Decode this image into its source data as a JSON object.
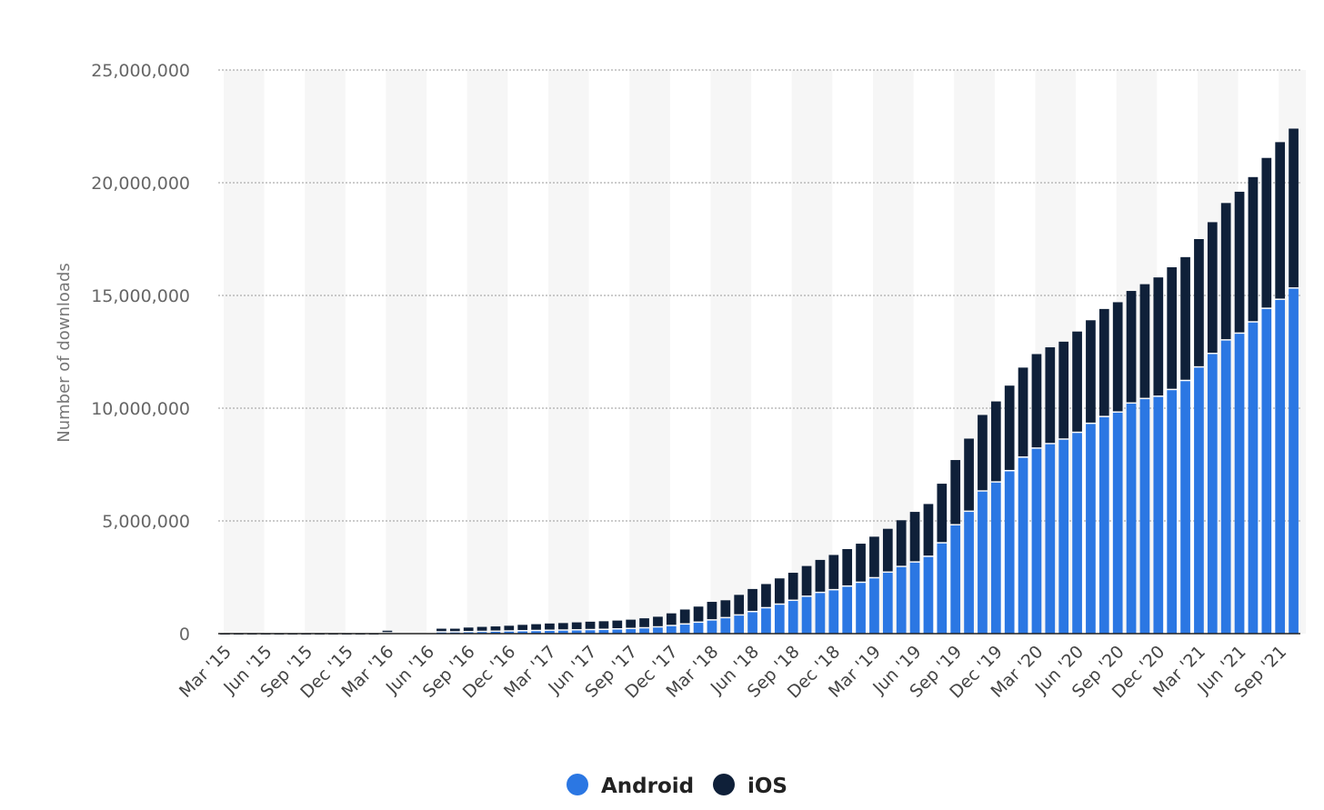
{
  "chart_data": {
    "type": "bar",
    "stacked": true,
    "ylabel": "Number of downloads",
    "ylim": [
      0,
      25000000
    ],
    "yticks": [
      0,
      5000000,
      10000000,
      15000000,
      20000000,
      25000000
    ],
    "ytick_labels": [
      "0",
      "5,000,000",
      "10,000,000",
      "15,000,000",
      "20,000,000",
      "25,000,000"
    ],
    "grid": true,
    "legend_position": "bottom-center",
    "categories": [
      "Mar '15",
      "Apr '15",
      "May '15",
      "Jun '15",
      "Jul '15",
      "Aug '15",
      "Sep '15",
      "Oct '15",
      "Nov '15",
      "Dec '15",
      "Jan '16",
      "Feb '16",
      "Mar '16",
      "Apr '16",
      "May '16",
      "Jun '16",
      "Jul '16",
      "Aug '16",
      "Sep '16",
      "Oct '16",
      "Nov '16",
      "Dec '16",
      "Jan '17",
      "Feb '17",
      "Mar '17",
      "Apr '17",
      "May '17",
      "Jun '17",
      "Jul '17",
      "Aug '17",
      "Sep '17",
      "Oct '17",
      "Nov '17",
      "Dec '17",
      "Jan '18",
      "Feb '18",
      "Mar '18",
      "Apr '18",
      "May '18",
      "Jun '18",
      "Jul '18",
      "Aug '18",
      "Sep '18",
      "Oct '18",
      "Nov '18",
      "Dec '18",
      "Jan '19",
      "Feb '19",
      "Mar '19",
      "Apr '19",
      "May '19",
      "Jun '19",
      "Jul '19",
      "Aug '19",
      "Sep '19",
      "Oct '19",
      "Nov '19",
      "Dec '19",
      "Jan '20",
      "Feb '20",
      "Mar '20",
      "Apr '20",
      "May '20",
      "Jun '20",
      "Jul '20",
      "Aug '20",
      "Sep '20",
      "Oct '20",
      "Nov '20",
      "Dec '20",
      "Jan '21",
      "Feb '21",
      "Mar '21",
      "Apr '21",
      "May '21",
      "Jun '21",
      "Jul '21",
      "Aug '21",
      "Sep '21",
      "Oct '21"
    ],
    "xtick_labels": [
      "Mar '15",
      "Jun '15",
      "Sep '15",
      "Dec '15",
      "Mar '16",
      "Jun '16",
      "Sep '16",
      "Dec '16",
      "Mar '17",
      "Jun '17",
      "Sep '17",
      "Dec '17",
      "Mar '18",
      "Jun '18",
      "Sep '18",
      "Dec '18",
      "Mar '19",
      "Jun '19",
      "Sep '19",
      "Dec '19",
      "Mar '20",
      "Jun '20",
      "Sep '20",
      "Dec '20",
      "Mar '21",
      "Jun '21",
      "Sep '21"
    ],
    "series": [
      {
        "name": "Android",
        "color": "#2b77e3",
        "values": [
          0,
          0,
          0,
          0,
          0,
          0,
          0,
          0,
          0,
          0,
          0,
          0,
          20000,
          0,
          0,
          0,
          50000,
          50000,
          60000,
          70000,
          80000,
          90000,
          100000,
          110000,
          120000,
          130000,
          140000,
          150000,
          160000,
          180000,
          200000,
          230000,
          270000,
          330000,
          400000,
          480000,
          580000,
          680000,
          800000,
          950000,
          1120000,
          1280000,
          1450000,
          1630000,
          1800000,
          1920000,
          2080000,
          2250000,
          2450000,
          2700000,
          2950000,
          3150000,
          3400000,
          4000000,
          4800000,
          5400000,
          6300000,
          6700000,
          7200000,
          7800000,
          8200000,
          8400000,
          8600000,
          8900000,
          9300000,
          9600000,
          9800000,
          10200000,
          10400000,
          10500000,
          10800000,
          11200000,
          11800000,
          12400000,
          13000000,
          13300000,
          13800000,
          14400000,
          14800000,
          15300000
        ]
      },
      {
        "name": "iOS",
        "color": "#0f2039",
        "values": [
          20000,
          20000,
          20000,
          20000,
          20000,
          20000,
          20000,
          20000,
          20000,
          20000,
          20000,
          20000,
          110000,
          0,
          0,
          0,
          170000,
          170000,
          210000,
          230000,
          240000,
          260000,
          290000,
          310000,
          330000,
          340000,
          360000,
          380000,
          390000,
          400000,
          420000,
          450000,
          480000,
          570000,
          670000,
          720000,
          830000,
          800000,
          920000,
          1030000,
          1080000,
          1170000,
          1250000,
          1370000,
          1470000,
          1570000,
          1670000,
          1740000,
          1850000,
          1950000,
          2080000,
          2250000,
          2350000,
          2650000,
          2900000,
          3250000,
          3400000,
          3600000,
          3800000,
          4000000,
          4200000,
          4300000,
          4350000,
          4500000,
          4600000,
          4800000,
          4900000,
          5000000,
          5100000,
          5300000,
          5450000,
          5500000,
          5700000,
          5850000,
          6100000,
          6300000,
          6450000,
          6700000,
          7000000,
          7100000
        ]
      }
    ]
  }
}
